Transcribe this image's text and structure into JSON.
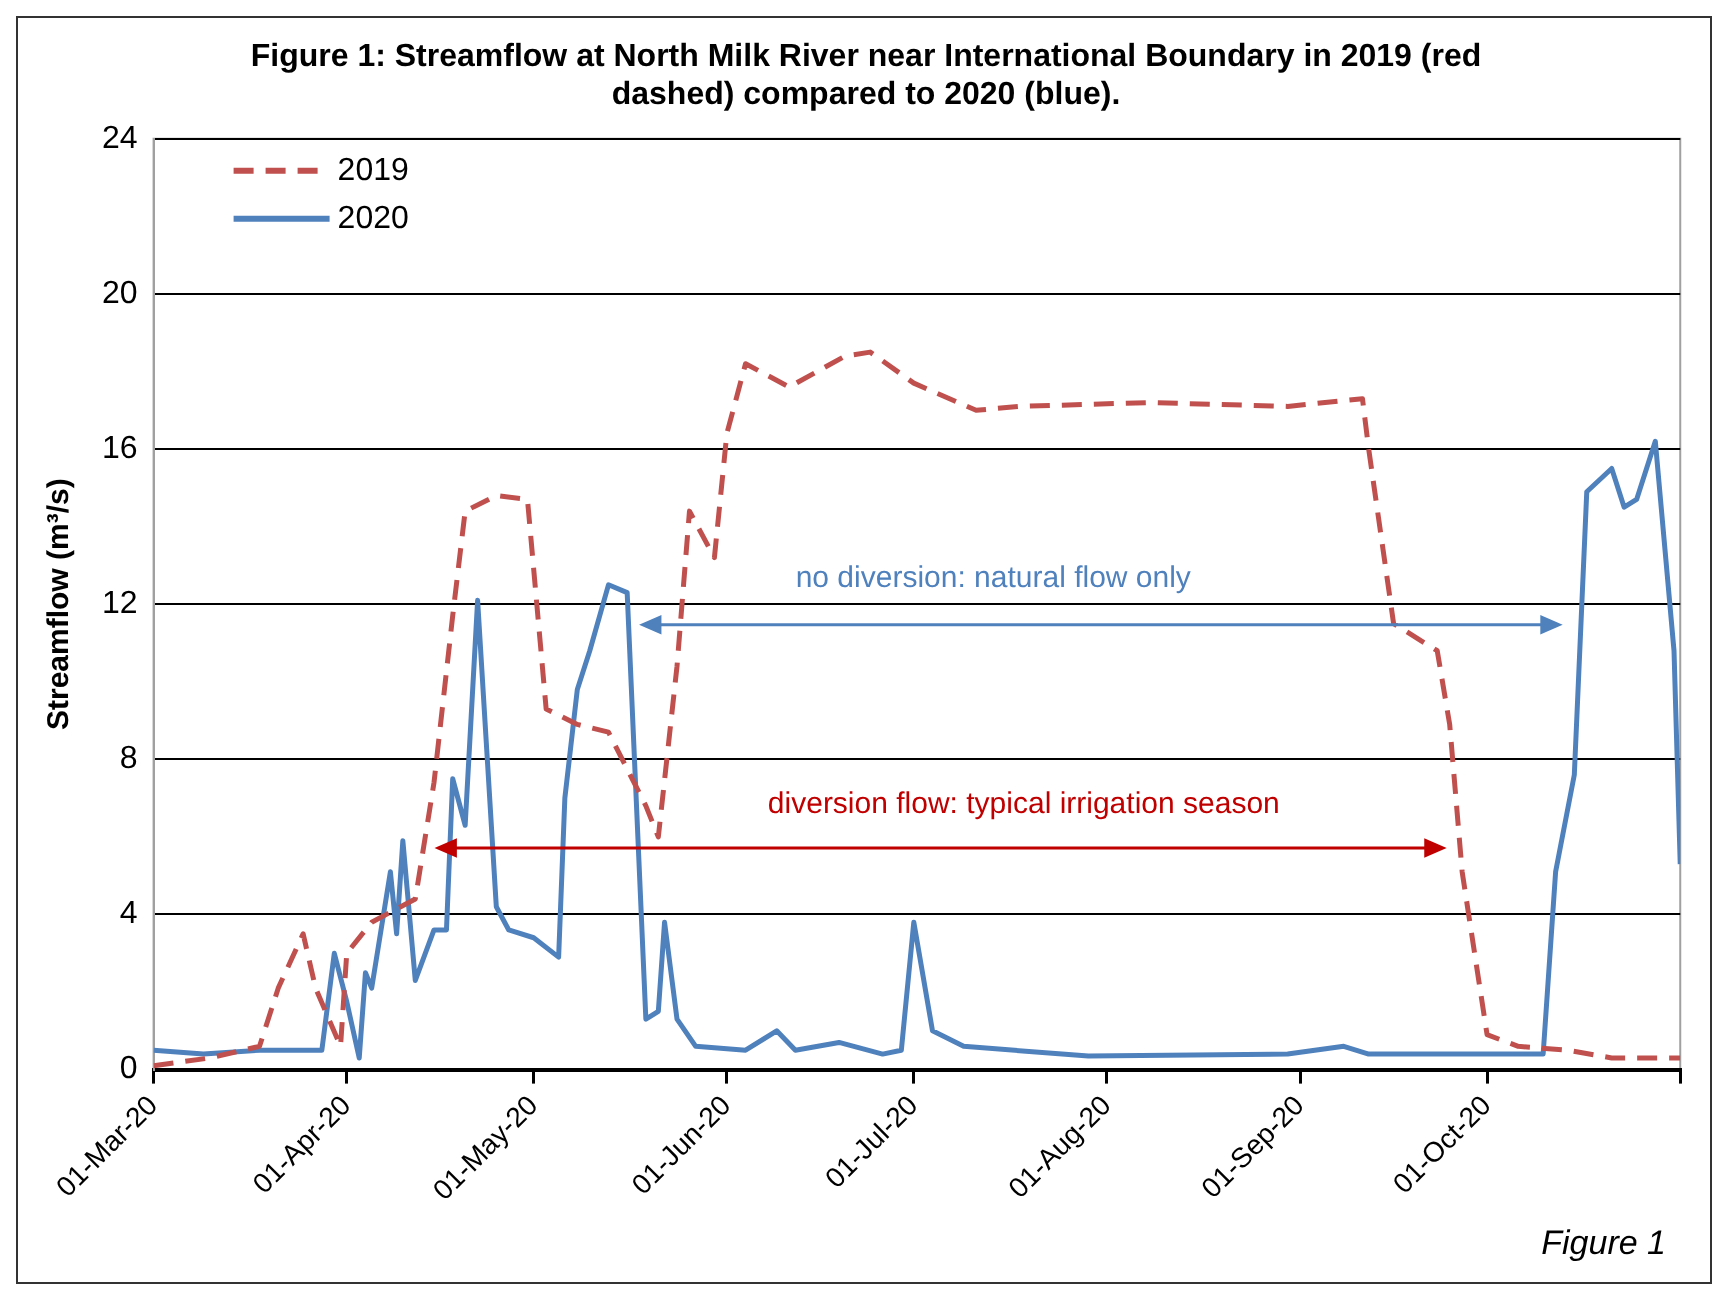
{
  "chart_data": {
    "type": "line",
    "title": "Figure 1: Streamflow at North Milk River near International Boundary in 2019 (red dashed) compared to 2020 (blue).",
    "ylabel": "Streamflow (m³/s)",
    "xlim": [
      "2020-03-01",
      "2020-11-01"
    ],
    "xticks": [
      {
        "value": "2020-03-01",
        "label": "01-Mar-20"
      },
      {
        "value": "2020-04-01",
        "label": "01-Apr-20"
      },
      {
        "value": "2020-05-01",
        "label": "01-May-20"
      },
      {
        "value": "2020-06-01",
        "label": "01-Jun-20"
      },
      {
        "value": "2020-07-01",
        "label": "01-Jul-20"
      },
      {
        "value": "2020-08-01",
        "label": "01-Aug-20"
      },
      {
        "value": "2020-09-01",
        "label": "01-Sep-20"
      },
      {
        "value": "2020-10-01",
        "label": "01-Oct-20"
      },
      {
        "value": "2020-11-01",
        "label": null
      }
    ],
    "ylim": [
      0,
      24
    ],
    "yticks": [
      0,
      4,
      8,
      12,
      16,
      20,
      24
    ],
    "grid": "y",
    "legend": "top left",
    "marker": "none",
    "series": [
      {
        "name": "2019",
        "color": "#c0504d",
        "line_style": "dashed",
        "x": [
          "2020-03-01",
          "2020-03-10",
          "2020-03-18",
          "2020-03-21",
          "2020-03-25",
          "2020-03-27",
          "2020-03-31",
          "2020-04-01",
          "2020-04-05",
          "2020-04-12",
          "2020-04-15",
          "2020-04-18",
          "2020-04-20",
          "2020-04-25",
          "2020-04-30",
          "2020-05-03",
          "2020-05-08",
          "2020-05-13",
          "2020-05-19",
          "2020-05-21",
          "2020-05-24",
          "2020-05-26",
          "2020-05-30",
          "2020-06-01",
          "2020-06-04",
          "2020-06-11",
          "2020-06-20",
          "2020-06-24",
          "2020-07-01",
          "2020-07-11",
          "2020-07-18",
          "2020-08-08",
          "2020-08-30",
          "2020-09-11",
          "2020-09-12",
          "2020-09-16",
          "2020-09-23",
          "2020-09-25",
          "2020-09-27",
          "2020-10-01",
          "2020-10-06",
          "2020-10-14",
          "2020-10-21",
          "2020-11-01"
        ],
        "values": [
          0.1,
          0.3,
          0.6,
          2.1,
          3.5,
          2.1,
          0.6,
          3.0,
          3.8,
          4.4,
          7.4,
          11.7,
          14.4,
          14.8,
          14.7,
          9.3,
          8.9,
          8.7,
          6.8,
          6.0,
          10.4,
          14.4,
          13.2,
          16.4,
          18.2,
          17.6,
          18.4,
          18.5,
          17.7,
          17.0,
          17.1,
          17.2,
          17.1,
          17.3,
          16.0,
          11.5,
          10.8,
          8.9,
          5.1,
          0.9,
          0.6,
          0.5,
          0.3,
          0.3
        ]
      },
      {
        "name": "2020",
        "color": "#4f81bd",
        "line_style": "solid",
        "x": [
          "2020-03-01",
          "2020-03-09",
          "2020-03-18",
          "2020-03-28",
          "2020-03-30",
          "2020-04-01",
          "2020-04-03",
          "2020-04-04",
          "2020-04-05",
          "2020-04-08",
          "2020-04-09",
          "2020-04-10",
          "2020-04-12",
          "2020-04-15",
          "2020-04-17",
          "2020-04-18",
          "2020-04-20",
          "2020-04-22",
          "2020-04-25",
          "2020-04-27",
          "2020-05-01",
          "2020-05-05",
          "2020-05-06",
          "2020-05-08",
          "2020-05-10",
          "2020-05-13",
          "2020-05-16",
          "2020-05-19",
          "2020-05-21",
          "2020-05-22",
          "2020-05-24",
          "2020-05-27",
          "2020-06-04",
          "2020-06-09",
          "2020-06-12",
          "2020-06-19",
          "2020-06-26",
          "2020-06-29",
          "2020-07-01",
          "2020-07-04",
          "2020-07-09",
          "2020-07-29",
          "2020-08-30",
          "2020-09-08",
          "2020-09-12",
          "2020-10-10",
          "2020-10-12",
          "2020-10-15",
          "2020-10-17",
          "2020-10-21",
          "2020-10-23",
          "2020-10-25",
          "2020-10-28",
          "2020-10-31",
          "2020-11-01"
        ],
        "values": [
          0.5,
          0.4,
          0.5,
          0.5,
          3.0,
          1.75,
          0.3,
          2.5,
          2.1,
          5.1,
          3.5,
          5.9,
          2.3,
          3.6,
          3.6,
          7.5,
          6.3,
          12.1,
          4.2,
          3.6,
          3.4,
          2.9,
          7.0,
          9.8,
          10.8,
          12.5,
          12.3,
          1.3,
          1.5,
          3.8,
          1.3,
          0.6,
          0.5,
          1.0,
          0.5,
          0.7,
          0.4,
          0.5,
          3.8,
          1.0,
          0.6,
          0.35,
          0.4,
          0.6,
          0.4,
          0.4,
          5.1,
          7.6,
          14.9,
          15.5,
          14.5,
          14.7,
          16.2,
          10.8,
          5.3
        ]
      }
    ],
    "annotations": [
      "no diversion: natural flow only",
      "diversion flow: typical irrigation season",
      "Figure 1"
    ]
  }
}
